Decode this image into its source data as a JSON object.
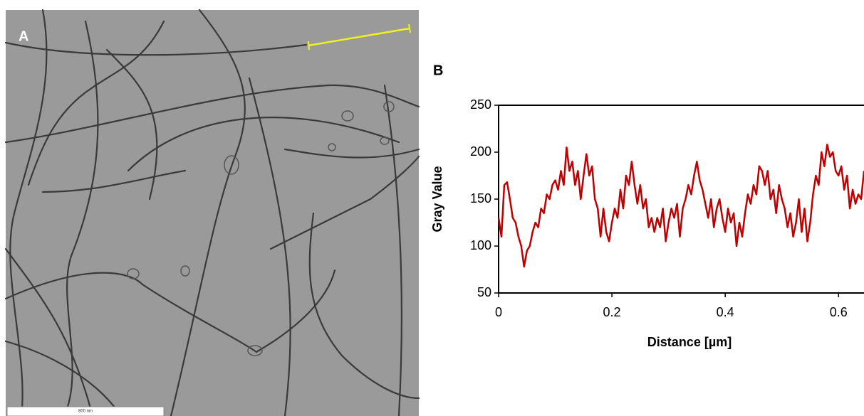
{
  "panel_a": {
    "label": "A",
    "scale_text": "800 nm"
  },
  "chart_data": {
    "type": "line",
    "panel_label": "B",
    "x_label": "Distance [µm]",
    "y_label": "Gray Value",
    "xlim": [
      0,
      0.645
    ],
    "ylim": [
      50,
      250
    ],
    "xticks": [
      0,
      0.2,
      0.4,
      0.6
    ],
    "yticks": [
      50,
      100,
      150,
      200,
      250
    ],
    "x": [
      0,
      0.005,
      0.01,
      0.015,
      0.02,
      0.025,
      0.03,
      0.035,
      0.04,
      0.045,
      0.05,
      0.055,
      0.06,
      0.065,
      0.07,
      0.075,
      0.08,
      0.085,
      0.09,
      0.095,
      0.1,
      0.105,
      0.11,
      0.115,
      0.12,
      0.125,
      0.13,
      0.135,
      0.14,
      0.145,
      0.15,
      0.155,
      0.16,
      0.165,
      0.17,
      0.175,
      0.18,
      0.185,
      0.19,
      0.195,
      0.2,
      0.205,
      0.21,
      0.215,
      0.22,
      0.225,
      0.23,
      0.235,
      0.24,
      0.245,
      0.25,
      0.255,
      0.26,
      0.265,
      0.27,
      0.275,
      0.28,
      0.285,
      0.29,
      0.295,
      0.3,
      0.305,
      0.31,
      0.315,
      0.32,
      0.325,
      0.33,
      0.335,
      0.34,
      0.345,
      0.35,
      0.355,
      0.36,
      0.365,
      0.37,
      0.375,
      0.38,
      0.385,
      0.39,
      0.395,
      0.4,
      0.405,
      0.41,
      0.415,
      0.42,
      0.425,
      0.43,
      0.435,
      0.44,
      0.445,
      0.45,
      0.455,
      0.46,
      0.465,
      0.47,
      0.475,
      0.48,
      0.485,
      0.49,
      0.495,
      0.5,
      0.505,
      0.51,
      0.515,
      0.52,
      0.525,
      0.53,
      0.535,
      0.54,
      0.545,
      0.55,
      0.555,
      0.56,
      0.565,
      0.57,
      0.575,
      0.58,
      0.585,
      0.59,
      0.595,
      0.6,
      0.605,
      0.61,
      0.615,
      0.62,
      0.625,
      0.63,
      0.635,
      0.64,
      0.645
    ],
    "series": [
      {
        "color": "#c00000",
        "values": [
          130,
          110,
          165,
          168,
          150,
          130,
          125,
          110,
          100,
          78,
          95,
          100,
          115,
          125,
          120,
          140,
          135,
          155,
          150,
          165,
          170,
          160,
          180,
          165,
          205,
          180,
          190,
          165,
          180,
          150,
          175,
          198,
          175,
          185,
          150,
          140,
          110,
          140,
          115,
          105,
          125,
          140,
          130,
          160,
          140,
          175,
          165,
          190,
          165,
          145,
          165,
          140,
          150,
          120,
          130,
          115,
          130,
          120,
          140,
          105,
          125,
          140,
          130,
          145,
          110,
          140,
          150,
          165,
          155,
          175,
          190,
          170,
          160,
          145,
          130,
          150,
          120,
          140,
          150,
          130,
          115,
          140,
          125,
          135,
          100,
          125,
          110,
          135,
          155,
          145,
          165,
          155,
          185,
          180,
          165,
          180,
          150,
          160,
          135,
          165,
          150,
          140,
          120,
          135,
          110,
          125,
          150,
          115,
          140,
          105,
          125,
          155,
          175,
          165,
          200,
          185,
          208,
          195,
          200,
          180,
          175,
          185,
          160,
          175,
          140,
          160,
          145,
          155,
          150,
          180
        ]
      }
    ]
  }
}
